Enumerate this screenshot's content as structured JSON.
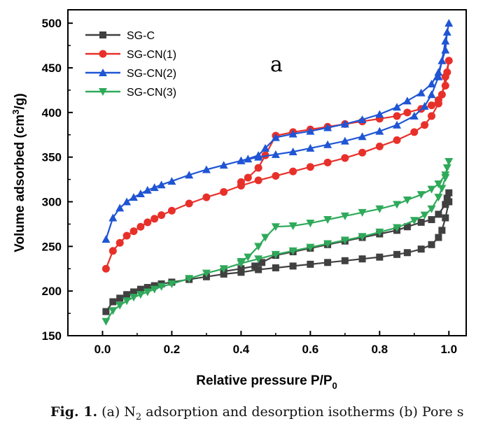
{
  "chart_data": {
    "type": "line",
    "xlabel": "Relative pressure P/P",
    "xlabel_sub": "0",
    "ylabel_pre": "Volume adsorbed (cm",
    "ylabel_sup": "3",
    "ylabel_post": "/g)",
    "annotation": "a",
    "xlim": [
      -0.1,
      1.05
    ],
    "ylim": [
      150,
      515
    ],
    "x_ticks": [
      "0.0",
      "0.2",
      "0.4",
      "0.6",
      "0.8",
      "1.0"
    ],
    "y_ticks": [
      "150",
      "200",
      "250",
      "300",
      "350",
      "400",
      "450",
      "500"
    ],
    "grid": false,
    "legend_position": "top-left",
    "series": [
      {
        "name": "SG-C",
        "color": "#404040",
        "marker": "square",
        "points": [
          [
            0.01,
            177
          ],
          [
            0.03,
            188
          ],
          [
            0.05,
            192
          ],
          [
            0.07,
            196
          ],
          [
            0.09,
            199
          ],
          [
            0.11,
            202
          ],
          [
            0.13,
            204
          ],
          [
            0.15,
            206
          ],
          [
            0.17,
            208
          ],
          [
            0.2,
            210
          ],
          [
            0.25,
            213
          ],
          [
            0.3,
            216
          ],
          [
            0.35,
            219
          ],
          [
            0.4,
            221
          ],
          [
            0.45,
            224
          ],
          [
            0.5,
            226
          ],
          [
            0.55,
            228
          ],
          [
            0.6,
            230
          ],
          [
            0.65,
            232
          ],
          [
            0.7,
            234
          ],
          [
            0.75,
            236
          ],
          [
            0.8,
            238
          ],
          [
            0.85,
            241
          ],
          [
            0.88,
            243
          ],
          [
            0.92,
            247
          ],
          [
            0.95,
            252
          ],
          [
            0.97,
            260
          ],
          [
            0.98,
            268
          ],
          [
            0.99,
            282
          ],
          [
            1.0,
            300
          ],
          [
            1.0,
            310
          ],
          [
            0.995,
            304
          ],
          [
            0.99,
            297
          ],
          [
            0.97,
            286
          ],
          [
            0.95,
            280
          ],
          [
            0.92,
            277
          ],
          [
            0.88,
            272
          ],
          [
            0.85,
            268
          ],
          [
            0.8,
            264
          ],
          [
            0.75,
            260
          ],
          [
            0.7,
            256
          ],
          [
            0.65,
            252
          ],
          [
            0.6,
            248
          ],
          [
            0.55,
            244
          ],
          [
            0.5,
            240
          ],
          [
            0.46,
            232
          ],
          [
            0.44,
            228
          ],
          [
            0.4,
            225
          ],
          [
            0.35,
            222
          ]
        ]
      },
      {
        "name": "SG-CN(1)",
        "color": "#e8302a",
        "marker": "circle",
        "points": [
          [
            0.01,
            225
          ],
          [
            0.03,
            245
          ],
          [
            0.05,
            254
          ],
          [
            0.07,
            262
          ],
          [
            0.09,
            267
          ],
          [
            0.11,
            272
          ],
          [
            0.13,
            277
          ],
          [
            0.15,
            281
          ],
          [
            0.17,
            285
          ],
          [
            0.2,
            290
          ],
          [
            0.25,
            298
          ],
          [
            0.3,
            305
          ],
          [
            0.35,
            311
          ],
          [
            0.4,
            318
          ],
          [
            0.45,
            324
          ],
          [
            0.5,
            329
          ],
          [
            0.55,
            334
          ],
          [
            0.6,
            339
          ],
          [
            0.65,
            344
          ],
          [
            0.7,
            349
          ],
          [
            0.75,
            355
          ],
          [
            0.8,
            362
          ],
          [
            0.85,
            369
          ],
          [
            0.9,
            378
          ],
          [
            0.93,
            386
          ],
          [
            0.95,
            396
          ],
          [
            0.97,
            410
          ],
          [
            0.98,
            420
          ],
          [
            0.99,
            440
          ],
          [
            1.0,
            458
          ],
          [
            0.995,
            445
          ],
          [
            0.99,
            430
          ],
          [
            0.97,
            414
          ],
          [
            0.95,
            408
          ],
          [
            0.92,
            404
          ],
          [
            0.88,
            400
          ],
          [
            0.85,
            396
          ],
          [
            0.8,
            393
          ],
          [
            0.75,
            390
          ],
          [
            0.7,
            387
          ],
          [
            0.65,
            384
          ],
          [
            0.6,
            381
          ],
          [
            0.55,
            378
          ],
          [
            0.5,
            374
          ],
          [
            0.47,
            352
          ],
          [
            0.45,
            338
          ],
          [
            0.42,
            327
          ],
          [
            0.4,
            322
          ]
        ]
      },
      {
        "name": "SG-CN(2)",
        "color": "#1f55d4",
        "marker": "triangle-up",
        "points": [
          [
            0.01,
            258
          ],
          [
            0.03,
            282
          ],
          [
            0.05,
            293
          ],
          [
            0.07,
            300
          ],
          [
            0.09,
            305
          ],
          [
            0.11,
            309
          ],
          [
            0.13,
            313
          ],
          [
            0.15,
            316
          ],
          [
            0.17,
            319
          ],
          [
            0.2,
            323
          ],
          [
            0.25,
            330
          ],
          [
            0.3,
            336
          ],
          [
            0.35,
            341
          ],
          [
            0.4,
            346
          ],
          [
            0.45,
            350
          ],
          [
            0.5,
            353
          ],
          [
            0.55,
            356
          ],
          [
            0.6,
            360
          ],
          [
            0.65,
            364
          ],
          [
            0.7,
            368
          ],
          [
            0.75,
            373
          ],
          [
            0.8,
            379
          ],
          [
            0.85,
            386
          ],
          [
            0.9,
            396
          ],
          [
            0.93,
            407
          ],
          [
            0.95,
            420
          ],
          [
            0.97,
            440
          ],
          [
            0.98,
            458
          ],
          [
            0.99,
            480
          ],
          [
            1.0,
            500
          ],
          [
            0.995,
            490
          ],
          [
            0.99,
            470
          ],
          [
            0.97,
            445
          ],
          [
            0.95,
            432
          ],
          [
            0.92,
            422
          ],
          [
            0.88,
            413
          ],
          [
            0.85,
            406
          ],
          [
            0.8,
            398
          ],
          [
            0.75,
            392
          ],
          [
            0.7,
            387
          ],
          [
            0.65,
            383
          ],
          [
            0.6,
            379
          ],
          [
            0.55,
            376
          ],
          [
            0.5,
            372
          ],
          [
            0.47,
            360
          ],
          [
            0.45,
            352
          ],
          [
            0.42,
            348
          ],
          [
            0.4,
            346
          ]
        ]
      },
      {
        "name": "SG-CN(3)",
        "color": "#2eaa5a",
        "marker": "triangle-down",
        "points": [
          [
            0.01,
            166
          ],
          [
            0.03,
            178
          ],
          [
            0.05,
            184
          ],
          [
            0.07,
            189
          ],
          [
            0.09,
            193
          ],
          [
            0.11,
            196
          ],
          [
            0.13,
            199
          ],
          [
            0.15,
            202
          ],
          [
            0.17,
            205
          ],
          [
            0.2,
            208
          ],
          [
            0.25,
            214
          ],
          [
            0.3,
            220
          ],
          [
            0.35,
            225
          ],
          [
            0.4,
            231
          ],
          [
            0.45,
            236
          ],
          [
            0.5,
            241
          ],
          [
            0.55,
            245
          ],
          [
            0.6,
            249
          ],
          [
            0.65,
            253
          ],
          [
            0.7,
            257
          ],
          [
            0.75,
            261
          ],
          [
            0.8,
            266
          ],
          [
            0.85,
            271
          ],
          [
            0.9,
            279
          ],
          [
            0.93,
            285
          ],
          [
            0.95,
            292
          ],
          [
            0.97,
            305
          ],
          [
            0.98,
            315
          ],
          [
            0.99,
            327
          ],
          [
            1.0,
            345
          ],
          [
            0.995,
            338
          ],
          [
            0.99,
            330
          ],
          [
            0.97,
            320
          ],
          [
            0.95,
            314
          ],
          [
            0.92,
            308
          ],
          [
            0.88,
            302
          ],
          [
            0.85,
            297
          ],
          [
            0.8,
            292
          ],
          [
            0.75,
            288
          ],
          [
            0.7,
            284
          ],
          [
            0.65,
            280
          ],
          [
            0.6,
            276
          ],
          [
            0.55,
            273
          ],
          [
            0.5,
            272
          ],
          [
            0.47,
            260
          ],
          [
            0.45,
            250
          ],
          [
            0.42,
            238
          ],
          [
            0.4,
            233
          ]
        ]
      }
    ]
  },
  "caption": {
    "fig_label": "Fig. 1.",
    "text_a": " (a) N",
    "text_sub": "2",
    "text_b": " adsorption and desorption isotherms (b) Pore s"
  }
}
